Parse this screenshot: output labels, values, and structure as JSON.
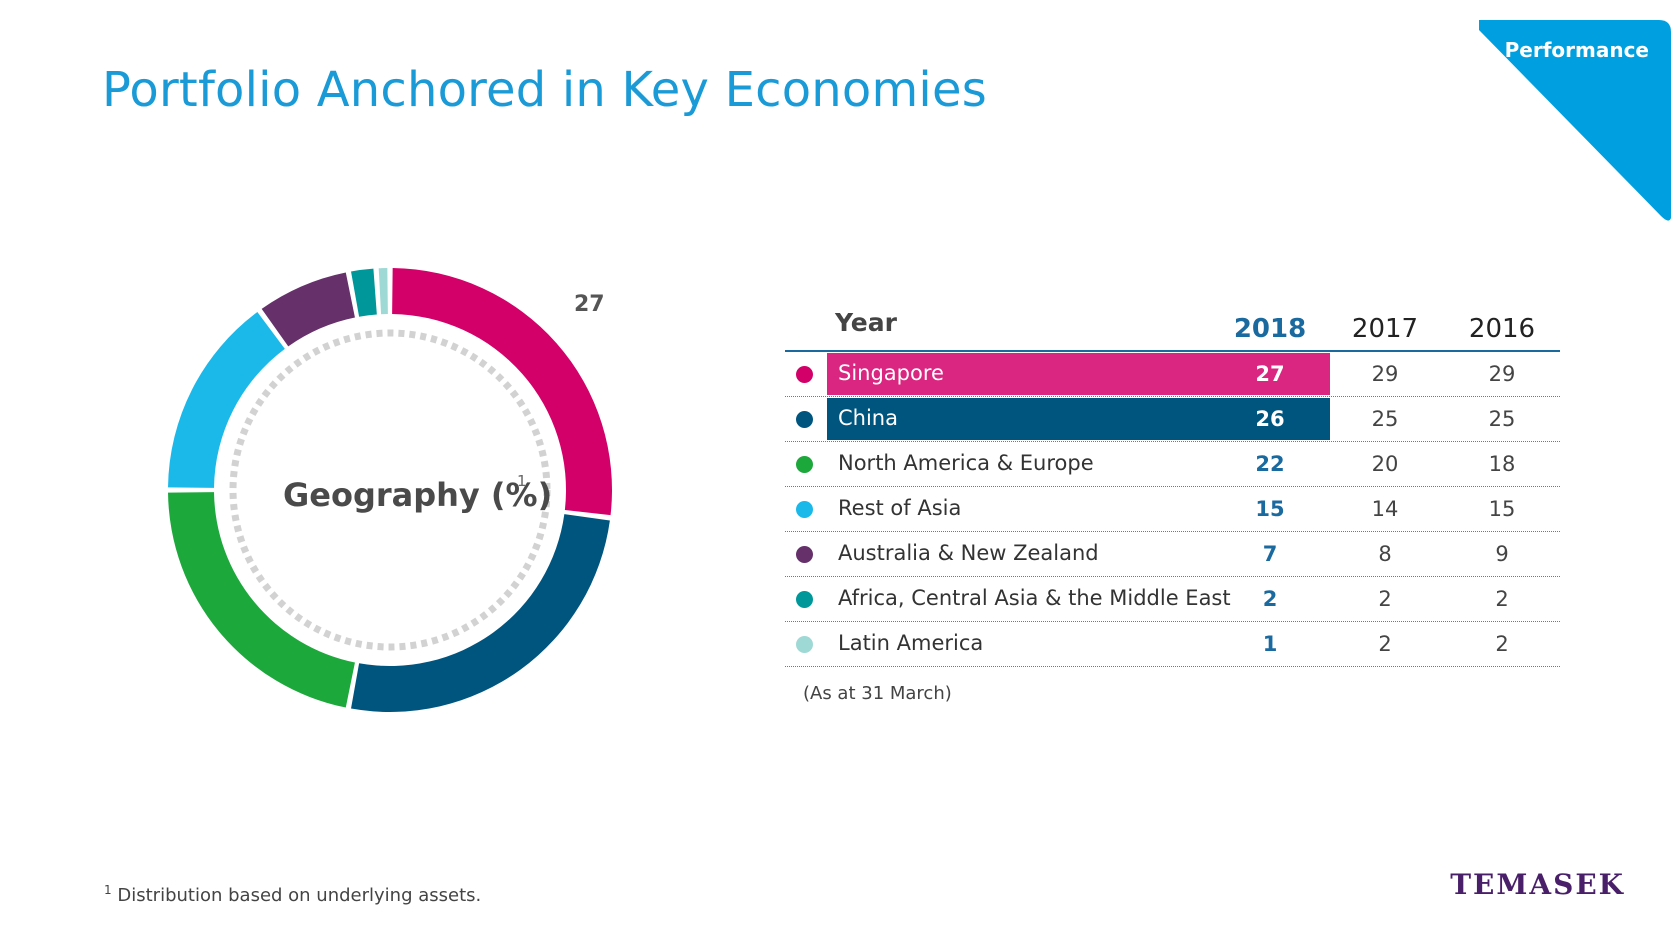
{
  "page": {
    "title": "Portfolio Anchored in Key Economies",
    "section_tab": "Performance",
    "footnote_marker": "1",
    "footnote": "Distribution based on underlying assets.",
    "as_at": "(As at 31 March)",
    "logo": "TEMASEK"
  },
  "colors": {
    "title": "#1a9ad6",
    "section_tab": "#009fdf",
    "highlight_year": "#1a6aa0",
    "logo": "#4a1f6a"
  },
  "chart_data": {
    "type": "pie",
    "style": "donut",
    "title": "Geography (%)",
    "title_marker": "1",
    "callout_label": "27",
    "categories": [
      "Singapore",
      "China",
      "North America & Europe",
      "Rest of Asia",
      "Australia & New Zealand",
      "Africa, Central Asia & the Middle East",
      "Latin America"
    ],
    "colors": [
      "#d4006a",
      "#00557f",
      "#1da83c",
      "#1bb8ea",
      "#66306b",
      "#00979a",
      "#9fd9d5"
    ],
    "values": [
      27,
      26,
      22,
      15,
      7,
      2,
      1
    ],
    "table": {
      "column_header": "Year",
      "years": [
        "2018",
        "2017",
        "2016"
      ],
      "rows": [
        {
          "name": "Singapore",
          "values": [
            "27",
            "29",
            "29"
          ],
          "highlight": true
        },
        {
          "name": "China",
          "values": [
            "26",
            "25",
            "25"
          ],
          "highlight": true
        },
        {
          "name": "North America & Europe",
          "values": [
            "22",
            "20",
            "18"
          ],
          "highlight": false
        },
        {
          "name": "Rest of Asia",
          "values": [
            "15",
            "14",
            "15"
          ],
          "highlight": false
        },
        {
          "name": "Australia & New Zealand",
          "values": [
            "7",
            "8",
            "9"
          ],
          "highlight": false
        },
        {
          "name": "Africa, Central Asia & the Middle East",
          "values": [
            "2",
            "2",
            "2"
          ],
          "highlight": false
        },
        {
          "name": "Latin America",
          "values": [
            "1",
            "2",
            "2"
          ],
          "highlight": false
        }
      ]
    }
  }
}
